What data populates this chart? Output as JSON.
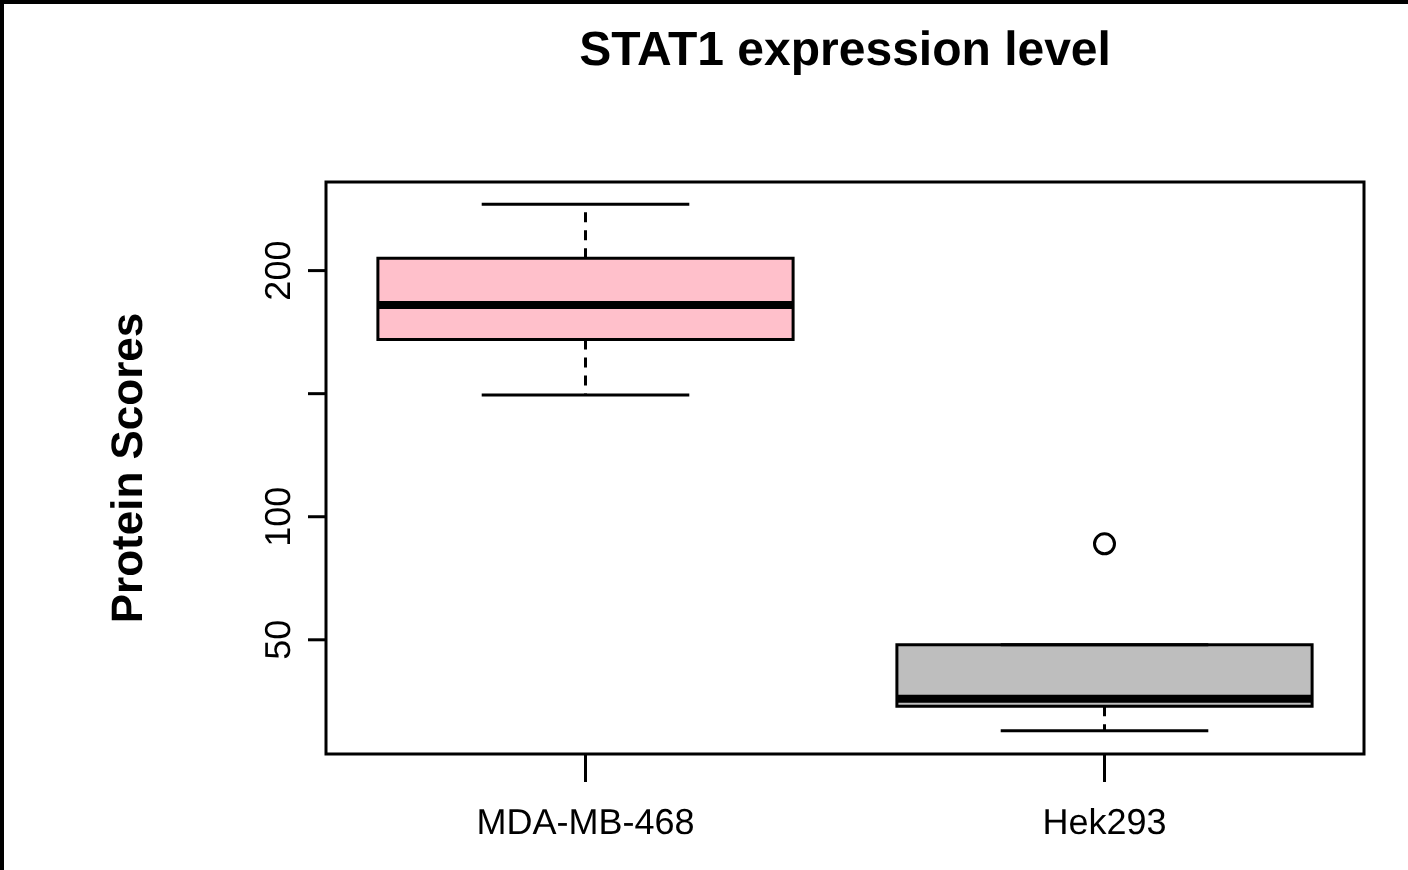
{
  "chart_data": {
    "type": "box",
    "title": "STAT1 expression level",
    "ylabel": "Protein Scores",
    "categories": [
      "MDA-MB-468",
      "Hek293"
    ],
    "boxes": [
      {
        "low": 149.5,
        "q1": 172,
        "median": 186,
        "q3": 205,
        "high": 227
      },
      {
        "low": 13,
        "q1": 23,
        "median": 26,
        "q3": 48,
        "high": 48,
        "outliers": [
          89
        ]
      }
    ],
    "colors": [
      "#ffc0cb",
      "#bebebe"
    ],
    "ylim": [
      3.6,
      236
    ],
    "yticks": [
      50,
      100,
      {
        "value": 150,
        "label": null
      },
      200
    ],
    "grid": false,
    "legend": false
  }
}
